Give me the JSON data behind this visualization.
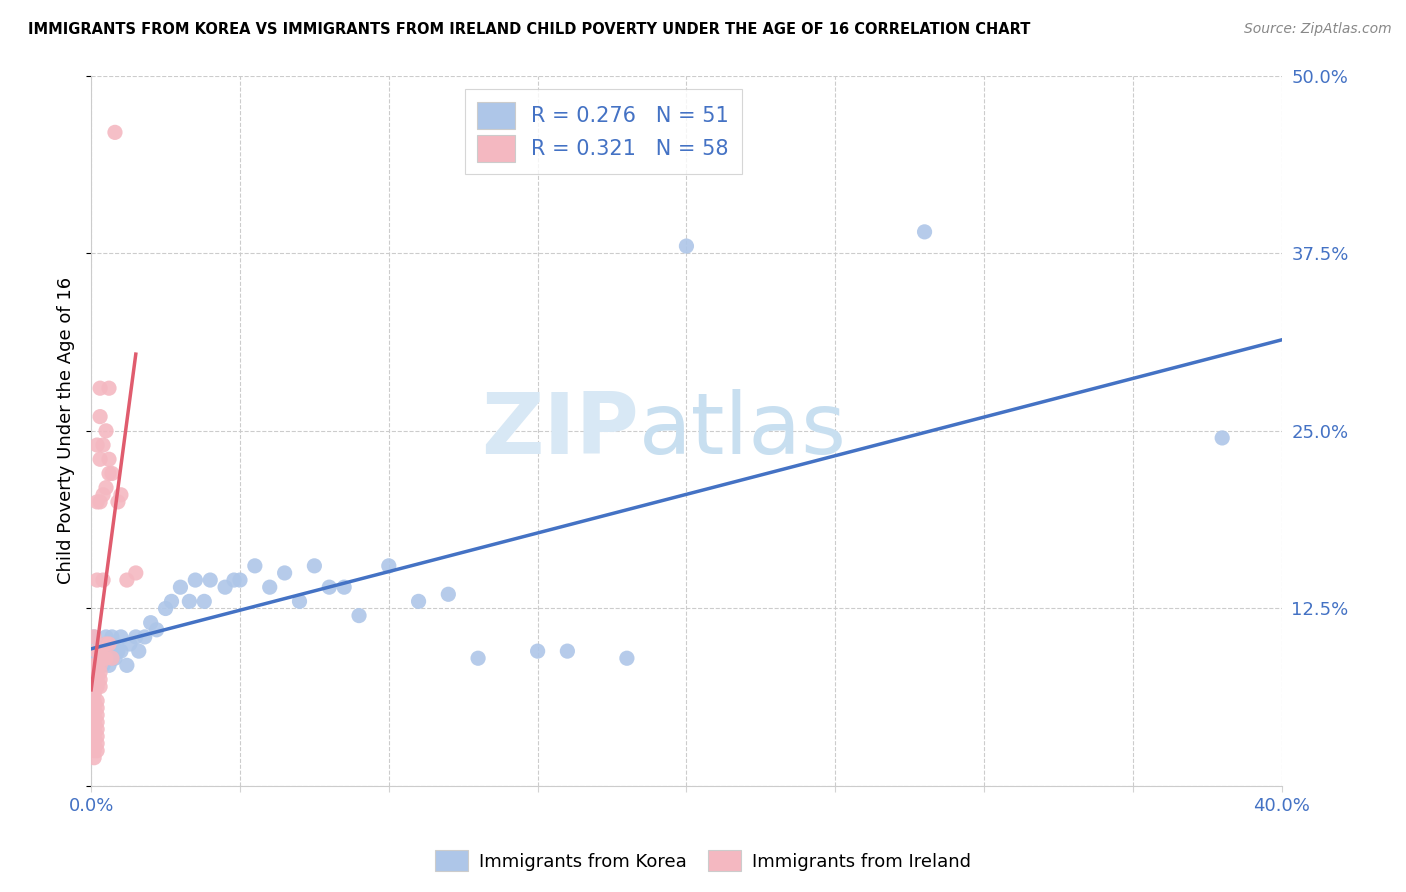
{
  "title": "IMMIGRANTS FROM KOREA VS IMMIGRANTS FROM IRELAND CHILD POVERTY UNDER THE AGE OF 16 CORRELATION CHART",
  "source": "Source: ZipAtlas.com",
  "xlabel_korea": "Immigrants from Korea",
  "xlabel_ireland": "Immigrants from Ireland",
  "ylabel": "Child Poverty Under the Age of 16",
  "watermark_zip": "ZIP",
  "watermark_atlas": "atlas",
  "xlim": [
    0.0,
    0.4
  ],
  "ylim": [
    0.0,
    0.5
  ],
  "xticks": [
    0.0,
    0.05,
    0.1,
    0.15,
    0.2,
    0.25,
    0.3,
    0.35,
    0.4
  ],
  "yticks_right": [
    0.0,
    0.125,
    0.25,
    0.375,
    0.5
  ],
  "ytick_labels_right": [
    "",
    "12.5%",
    "25.0%",
    "37.5%",
    "50.0%"
  ],
  "xtick_labels": [
    "0.0%",
    "",
    "",
    "",
    "",
    "",
    "",
    "",
    "40.0%"
  ],
  "korea_R": 0.276,
  "korea_N": 51,
  "ireland_R": 0.321,
  "ireland_N": 58,
  "korea_color": "#aec6e8",
  "ireland_color": "#f4b8c1",
  "korea_line_color": "#4472c4",
  "ireland_line_color": "#e05c6e",
  "korea_scatter": [
    [
      0.001,
      0.105
    ],
    [
      0.002,
      0.09
    ],
    [
      0.003,
      0.1
    ],
    [
      0.003,
      0.085
    ],
    [
      0.004,
      0.095
    ],
    [
      0.004,
      0.085
    ],
    [
      0.005,
      0.105
    ],
    [
      0.005,
      0.09
    ],
    [
      0.006,
      0.095
    ],
    [
      0.006,
      0.085
    ],
    [
      0.007,
      0.09
    ],
    [
      0.007,
      0.105
    ],
    [
      0.008,
      0.09
    ],
    [
      0.009,
      0.095
    ],
    [
      0.01,
      0.095
    ],
    [
      0.01,
      0.105
    ],
    [
      0.012,
      0.085
    ],
    [
      0.013,
      0.1
    ],
    [
      0.015,
      0.105
    ],
    [
      0.016,
      0.095
    ],
    [
      0.018,
      0.105
    ],
    [
      0.02,
      0.115
    ],
    [
      0.022,
      0.11
    ],
    [
      0.025,
      0.125
    ],
    [
      0.027,
      0.13
    ],
    [
      0.03,
      0.14
    ],
    [
      0.033,
      0.13
    ],
    [
      0.035,
      0.145
    ],
    [
      0.038,
      0.13
    ],
    [
      0.04,
      0.145
    ],
    [
      0.045,
      0.14
    ],
    [
      0.048,
      0.145
    ],
    [
      0.05,
      0.145
    ],
    [
      0.055,
      0.155
    ],
    [
      0.06,
      0.14
    ],
    [
      0.065,
      0.15
    ],
    [
      0.07,
      0.13
    ],
    [
      0.075,
      0.155
    ],
    [
      0.08,
      0.14
    ],
    [
      0.085,
      0.14
    ],
    [
      0.09,
      0.12
    ],
    [
      0.1,
      0.155
    ],
    [
      0.11,
      0.13
    ],
    [
      0.12,
      0.135
    ],
    [
      0.13,
      0.09
    ],
    [
      0.15,
      0.095
    ],
    [
      0.16,
      0.095
    ],
    [
      0.18,
      0.09
    ],
    [
      0.2,
      0.38
    ],
    [
      0.28,
      0.39
    ],
    [
      0.38,
      0.245
    ]
  ],
  "ireland_scatter": [
    [
      0.001,
      0.105
    ],
    [
      0.001,
      0.085
    ],
    [
      0.001,
      0.075
    ],
    [
      0.001,
      0.07
    ],
    [
      0.001,
      0.065
    ],
    [
      0.001,
      0.06
    ],
    [
      0.001,
      0.055
    ],
    [
      0.001,
      0.05
    ],
    [
      0.001,
      0.045
    ],
    [
      0.001,
      0.04
    ],
    [
      0.001,
      0.035
    ],
    [
      0.001,
      0.03
    ],
    [
      0.001,
      0.025
    ],
    [
      0.001,
      0.02
    ],
    [
      0.002,
      0.095
    ],
    [
      0.002,
      0.085
    ],
    [
      0.002,
      0.08
    ],
    [
      0.002,
      0.075
    ],
    [
      0.002,
      0.07
    ],
    [
      0.002,
      0.06
    ],
    [
      0.002,
      0.055
    ],
    [
      0.002,
      0.05
    ],
    [
      0.002,
      0.045
    ],
    [
      0.002,
      0.04
    ],
    [
      0.002,
      0.035
    ],
    [
      0.002,
      0.03
    ],
    [
      0.002,
      0.025
    ],
    [
      0.002,
      0.145
    ],
    [
      0.002,
      0.2
    ],
    [
      0.002,
      0.24
    ],
    [
      0.003,
      0.095
    ],
    [
      0.003,
      0.085
    ],
    [
      0.003,
      0.08
    ],
    [
      0.003,
      0.075
    ],
    [
      0.003,
      0.07
    ],
    [
      0.003,
      0.2
    ],
    [
      0.003,
      0.23
    ],
    [
      0.003,
      0.26
    ],
    [
      0.003,
      0.28
    ],
    [
      0.004,
      0.09
    ],
    [
      0.004,
      0.145
    ],
    [
      0.004,
      0.205
    ],
    [
      0.004,
      0.24
    ],
    [
      0.005,
      0.09
    ],
    [
      0.005,
      0.1
    ],
    [
      0.005,
      0.21
    ],
    [
      0.005,
      0.25
    ],
    [
      0.006,
      0.1
    ],
    [
      0.006,
      0.22
    ],
    [
      0.006,
      0.23
    ],
    [
      0.006,
      0.28
    ],
    [
      0.007,
      0.09
    ],
    [
      0.007,
      0.22
    ],
    [
      0.008,
      0.46
    ],
    [
      0.009,
      0.2
    ],
    [
      0.01,
      0.205
    ],
    [
      0.012,
      0.145
    ],
    [
      0.015,
      0.15
    ]
  ]
}
